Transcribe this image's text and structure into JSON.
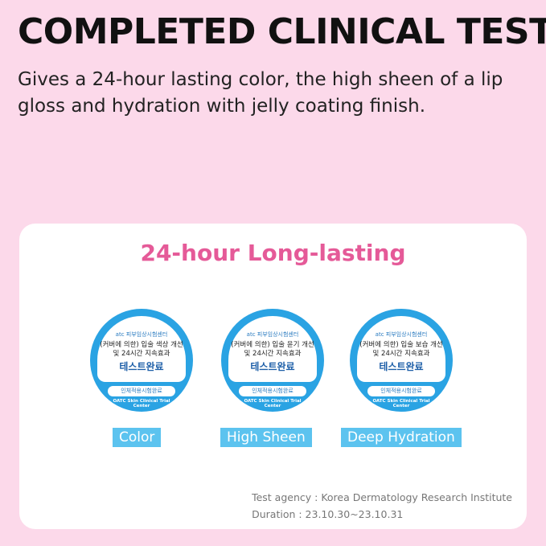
{
  "header": {
    "title": "COMPLETED CLINICAL TEST",
    "subtitle": "Gives a 24-hour lasting color, the high sheen of a lip gloss and hydration with jelly coating finish."
  },
  "card": {
    "title": "24-hour Long-lasting",
    "badges": [
      {
        "brand": "atc 피부임상시험센터",
        "line1": "(커버에 의한) 입술 색상 개선",
        "line2": "및 24시간 지속효과",
        "result": "테스트완료",
        "pill": "인체적용시험완료",
        "ring": "OATC Skin Clinical Trial Center",
        "label": "Color"
      },
      {
        "brand": "atc 피부임상시험센터",
        "line1": "(커버에 의한) 입술 윤기 개선",
        "line2": "및 24시간 지속효과",
        "result": "테스트완료",
        "pill": "인체적용시험완료",
        "ring": "OATC Skin Clinical Trial Center",
        "label": "High Sheen"
      },
      {
        "brand": "atc 피부임상시험센터",
        "line1": "(커버에 의한) 입술 보습 개선",
        "line2": "및 24시간 지속효과",
        "result": "테스트완료",
        "pill": "인체적용시험완료",
        "ring": "OATC Skin Clinical Trial Center",
        "label": "Deep Hydration"
      }
    ],
    "agency": "Test agency : Korea Dermatology Research Institute",
    "duration": "Duration : 23.10.30~23.10.31"
  },
  "colors": {
    "background": "#fcd9ea",
    "accent": "#e55a98",
    "badge": "#2aa3e3",
    "label": "#5cc3ef"
  }
}
